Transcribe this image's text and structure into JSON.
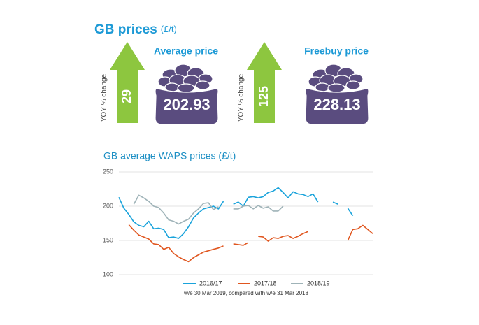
{
  "header": {
    "title": "GB prices",
    "unit": "(£/t)"
  },
  "cards": [
    {
      "label": "Average price",
      "yoy_label": "YOY % change",
      "yoy": 29,
      "price": 202.93
    },
    {
      "label": "Freebuy price",
      "yoy_label": "YOY % change",
      "yoy": 125,
      "price": 228.13
    }
  ],
  "chart_data": {
    "type": "line",
    "title": "GB average WAPS prices (£/t)",
    "categories": [
      null,
      null,
      null,
      null,
      null,
      null,
      null,
      null,
      null,
      null,
      null,
      null,
      null,
      null,
      null,
      null,
      null,
      null,
      null,
      null,
      null,
      null,
      null,
      null,
      null,
      null,
      null,
      null,
      null,
      null,
      null,
      null,
      null,
      null,
      null,
      null,
      null,
      null,
      null,
      null,
      null,
      null,
      null,
      null,
      null,
      null,
      null,
      null,
      null,
      null,
      null,
      null
    ],
    "series": [
      {
        "name": "2016/17",
        "color": "#1aa3db",
        "values": [
          213,
          197,
          188,
          177,
          172,
          170,
          178,
          167,
          168,
          166,
          154,
          155,
          153,
          160,
          170,
          183,
          190,
          196,
          198,
          200,
          196,
          207,
          null,
          203,
          206,
          200,
          213,
          214,
          212,
          214,
          220,
          222,
          227,
          220,
          212,
          221,
          218,
          217,
          214,
          218,
          206,
          null,
          null,
          206,
          203,
          null,
          197,
          186,
          null,
          null,
          null,
          null
        ]
      },
      {
        "name": "2017/18",
        "color": "#e0561f",
        "values": [
          null,
          null,
          173,
          165,
          158,
          155,
          152,
          145,
          144,
          137,
          140,
          131,
          126,
          122,
          119,
          125,
          129,
          133,
          135,
          137,
          139,
          142,
          null,
          145,
          144,
          143,
          147,
          null,
          156,
          155,
          149,
          154,
          153,
          156,
          157,
          153,
          156,
          160,
          163,
          null,
          null,
          null,
          null,
          null,
          null,
          null,
          150,
          166,
          167,
          172,
          166,
          160
        ]
      },
      {
        "name": "2018/19",
        "color": "#9fb3b8",
        "values": [
          null,
          null,
          null,
          203,
          216,
          212,
          207,
          200,
          198,
          190,
          180,
          178,
          174,
          178,
          181,
          190,
          196,
          204,
          205,
          195,
          199,
          null,
          null,
          196,
          196,
          200,
          201,
          196,
          201,
          197,
          199,
          193,
          193,
          200,
          null,
          null,
          null,
          null,
          null,
          null,
          null,
          null,
          null,
          null,
          null,
          null,
          null,
          null,
          null,
          null,
          null,
          null
        ]
      }
    ],
    "ylim": [
      100,
      250
    ],
    "yticks": [
      100,
      150,
      200,
      250
    ],
    "grid": true,
    "legend": "bottom",
    "caption": "w/e 30 Mar 2019, compared with w/e 31 Mar 2018"
  }
}
